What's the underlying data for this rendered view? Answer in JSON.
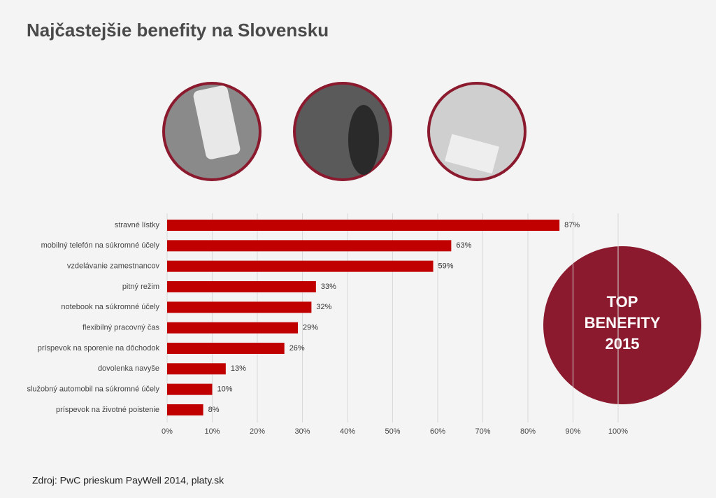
{
  "chart_data": {
    "type": "hbar",
    "title": "Najčastejšie benefity na Slovensku",
    "categories": [
      "stravné lístky",
      "mobilný telefón na súkromné účely",
      "vzdelávanie zamestnancov",
      "pitný režim",
      "notebook na súkromné účely",
      "flexibilný pracovný čas",
      "príspevok na sporenie na dôchodok",
      "dovolenka navyše",
      "služobný automobil na súkromné účely",
      "príspevok na životné poistenie"
    ],
    "values": [
      87,
      63,
      59,
      33,
      32,
      29,
      26,
      13,
      10,
      8
    ],
    "value_labels": [
      "87%",
      "63%",
      "59%",
      "33%",
      "32%",
      "29%",
      "26%",
      "13%",
      "10%",
      "8%"
    ],
    "color": "#c00000",
    "xlim": [
      0,
      100
    ],
    "xticks": [
      {
        "value": 0,
        "label": "0%"
      },
      {
        "value": 10,
        "label": "10%"
      },
      {
        "value": 20,
        "label": "20%"
      },
      {
        "value": 30,
        "label": "30%"
      },
      {
        "value": 40,
        "label": "40%"
      },
      {
        "value": 50,
        "label": "50%"
      },
      {
        "value": 60,
        "label": "60%"
      },
      {
        "value": 70,
        "label": "70%"
      },
      {
        "value": 80,
        "label": "80%"
      },
      {
        "value": 90,
        "label": "90%"
      },
      {
        "value": 100,
        "label": "100%"
      }
    ],
    "grid": true,
    "badge_lines": [
      "TOP",
      "BENEFITY",
      "2015"
    ],
    "source": "Zdroj: PwC prieskum PayWell 2014, platy.sk"
  }
}
